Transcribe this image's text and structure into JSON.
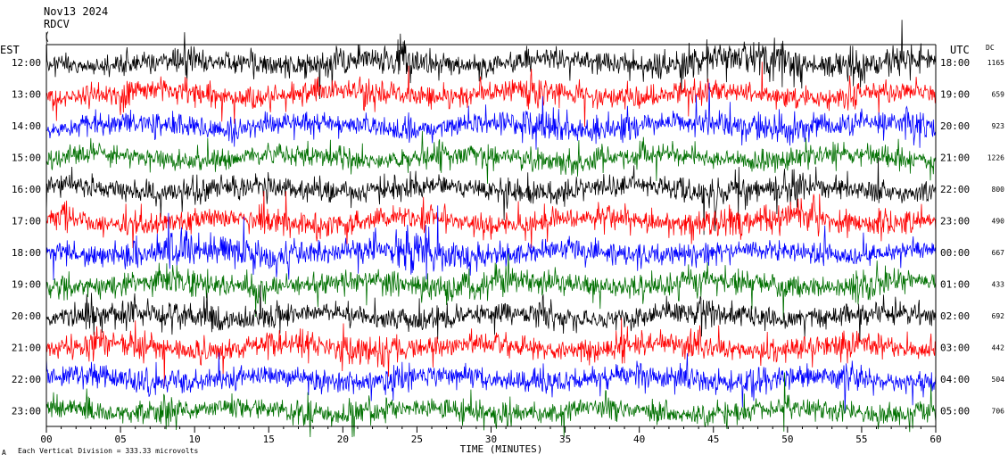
{
  "header": {
    "date": "Nov13 2024",
    "station": "RDCV",
    "line3": "("
  },
  "chart_data": {
    "type": "line",
    "title": "",
    "xlabel": "TIME (MINUTES)",
    "x_ticks": [
      "00",
      "05",
      "10",
      "15",
      "20",
      "25",
      "30",
      "35",
      "40",
      "45",
      "50",
      "55",
      "60"
    ],
    "xlim": [
      0,
      60
    ],
    "left_axis_label": "EST",
    "right_axis_label": "UTC",
    "dc_label": "DC",
    "est_hours": [
      "12:00",
      "13:00",
      "14:00",
      "15:00",
      "16:00",
      "17:00",
      "18:00",
      "19:00",
      "20:00",
      "21:00",
      "22:00",
      "23:00"
    ],
    "utc_hours": [
      "18:00",
      "19:00",
      "20:00",
      "21:00",
      "22:00",
      "23:00",
      "00:00",
      "01:00",
      "02:00",
      "03:00",
      "04:00",
      "05:00"
    ],
    "dc_offsets": [
      "1165",
      "659",
      "923",
      "1226",
      "800",
      "490",
      "667",
      "433",
      "692",
      "442",
      "504",
      "706"
    ],
    "trace_colors": [
      "#000000",
      "#ff0000",
      "#0000ff",
      "#007000"
    ],
    "footer_note": "Each Vertical Division =  333.33 microvolts",
    "footer_mark": "A"
  }
}
